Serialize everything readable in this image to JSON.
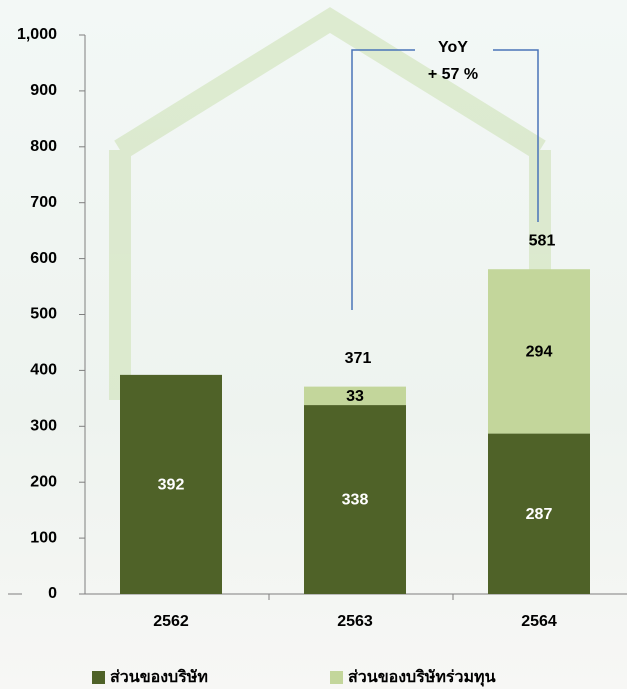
{
  "chart_data": {
    "type": "stacked_bar",
    "categories": [
      "2562",
      "2563",
      "2564"
    ],
    "series": [
      {
        "name": "ส่วนของบริษัท",
        "color": "#4f6228",
        "values": [
          392,
          338,
          287
        ]
      },
      {
        "name": "ส่วนของบริษัทร่วมทุน",
        "color": "#c3d69b",
        "values": [
          null,
          33,
          294
        ]
      }
    ],
    "totals": [
      null,
      371,
      581
    ],
    "annotation": {
      "title": "YoY",
      "text": "+ 57 %"
    },
    "ylim": [
      0,
      1000
    ],
    "yticks": [
      0,
      100,
      200,
      300,
      400,
      500,
      600,
      700,
      800,
      900,
      {
        "value": 1000,
        "label": "1,000"
      }
    ],
    "legend": "bottom"
  }
}
